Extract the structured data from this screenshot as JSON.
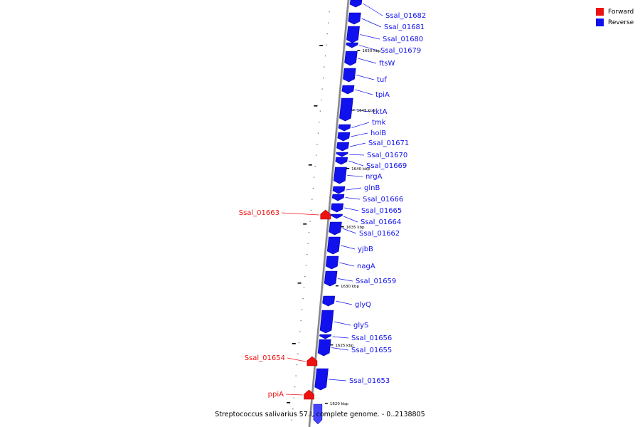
{
  "legend": {
    "forward": {
      "label": "Forward",
      "color": "#ee1111"
    },
    "reverse": {
      "label": "Reverse",
      "color": "#1111ee"
    }
  },
  "caption": "Streptococcus salivarius 57.I, complete genome. - 0..2138805",
  "genes_reverse": [
    "Ssal_01682",
    "Ssal_01681",
    "Ssal_01680",
    "Ssal_01679",
    "ftsW",
    "tuf",
    "tpiA",
    "tktA",
    "tmk",
    "holB",
    "Ssal_01671",
    "Ssal_01670",
    "Ssal_01669",
    "nrgA",
    "glnB",
    "Ssal_01666",
    "Ssal_01665",
    "Ssal_01664",
    "Ssal_01662",
    "yjbB",
    "nagA",
    "Ssal_01659",
    "glyQ",
    "glyS",
    "Ssal_01656",
    "Ssal_01655",
    "Ssal_01653"
  ],
  "genes_forward": [
    "Ssal_01663",
    "Ssal_01654",
    "ppiA"
  ],
  "kbp_ticks": [
    "1650 kbp",
    "1645 kbp",
    "1640 kbp",
    "1635 kbp",
    "1630 kbp",
    "1625 kbp",
    "1620 kbp"
  ]
}
